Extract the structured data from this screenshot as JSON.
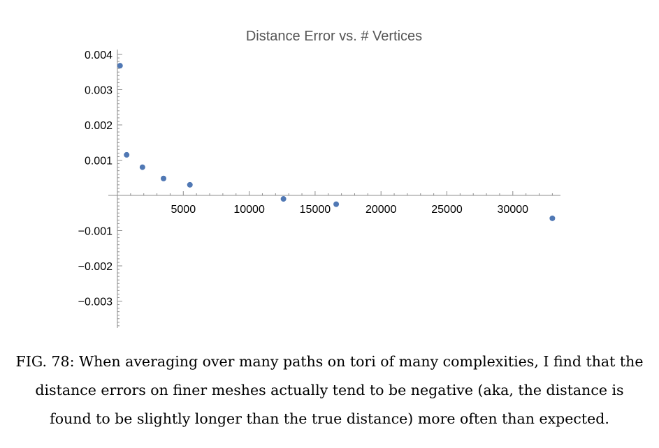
{
  "caption": "FIG. 78: When averaging over many paths on tori of many complexities, I find that the distance errors on finer meshes actually tend to be negative (aka, the distance is found to be slightly longer than the true distance) more often than expected.",
  "chart_data": {
    "type": "scatter",
    "title": "Distance Error vs. # Vertices",
    "xlabel": "",
    "ylabel": "",
    "xlim": [
      0,
      33500
    ],
    "ylim": [
      -0.0038,
      0.0041
    ],
    "x_ticks": [
      5000,
      10000,
      15000,
      20000,
      25000,
      30000
    ],
    "x_tick_labels": [
      "5000",
      "10000",
      "15000",
      "20000",
      "25000",
      "30000"
    ],
    "y_ticks": [
      0.004,
      0.003,
      0.002,
      0.001,
      -0.001,
      -0.002,
      -0.003
    ],
    "y_tick_labels": [
      "0.004",
      "0.003",
      "0.002",
      "0.001",
      "−0.001",
      "−0.002",
      "−0.003"
    ],
    "grid": false,
    "point_color": "#5078b4",
    "series": [
      {
        "x": [
          200,
          700,
          1900,
          3500,
          5500,
          12600,
          16600,
          33000
        ],
        "y": [
          0.00368,
          0.00115,
          0.0008,
          0.00048,
          0.0003,
          -0.0001,
          -0.00025,
          -0.00065
        ]
      }
    ]
  }
}
